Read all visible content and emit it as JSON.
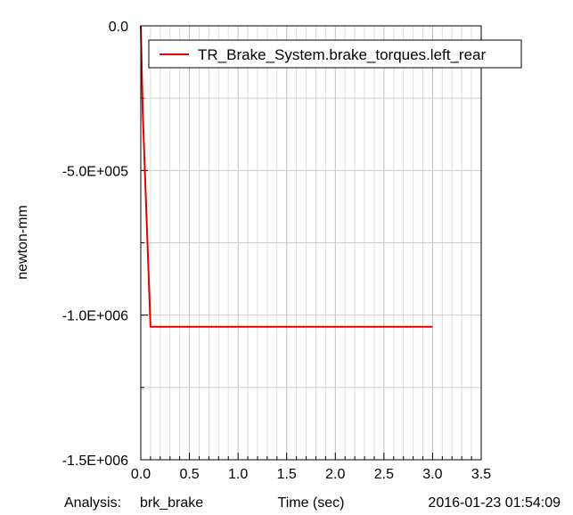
{
  "chart_data": {
    "type": "line",
    "title": "",
    "xlabel": "Time (sec)",
    "ylabel": "newton-mm",
    "xlim": [
      0,
      3.5
    ],
    "ylim": [
      -1500000,
      0
    ],
    "x_ticks": [
      0,
      0.5,
      1,
      1.5,
      2,
      2.5,
      3,
      3.5
    ],
    "x_tick_labels": [
      "0.0",
      "0.5",
      "1.0",
      "1.5",
      "2.0",
      "2.5",
      "3.0",
      "3.5"
    ],
    "x_minor_step": 0.1,
    "y_ticks": [
      0,
      -500000,
      -1000000,
      -1500000
    ],
    "y_tick_labels": [
      "0.0",
      "-5.0E+005",
      "-1.0E+006",
      "-1.5E+006"
    ],
    "y_minor_step": 250000,
    "grid": true,
    "legend_position": "top-right",
    "series": [
      {
        "name": "TR_Brake_System.brake_torques.left_rear",
        "color": "#e00000",
        "x": [
          0.0,
          0.02,
          0.1,
          3.0
        ],
        "y": [
          0,
          -300000,
          -1040000,
          -1040000
        ]
      }
    ]
  },
  "footer": {
    "analysis_label": "Analysis:",
    "analysis_name": "brk_brake",
    "timestamp": "2016-01-23 01:54:09"
  }
}
